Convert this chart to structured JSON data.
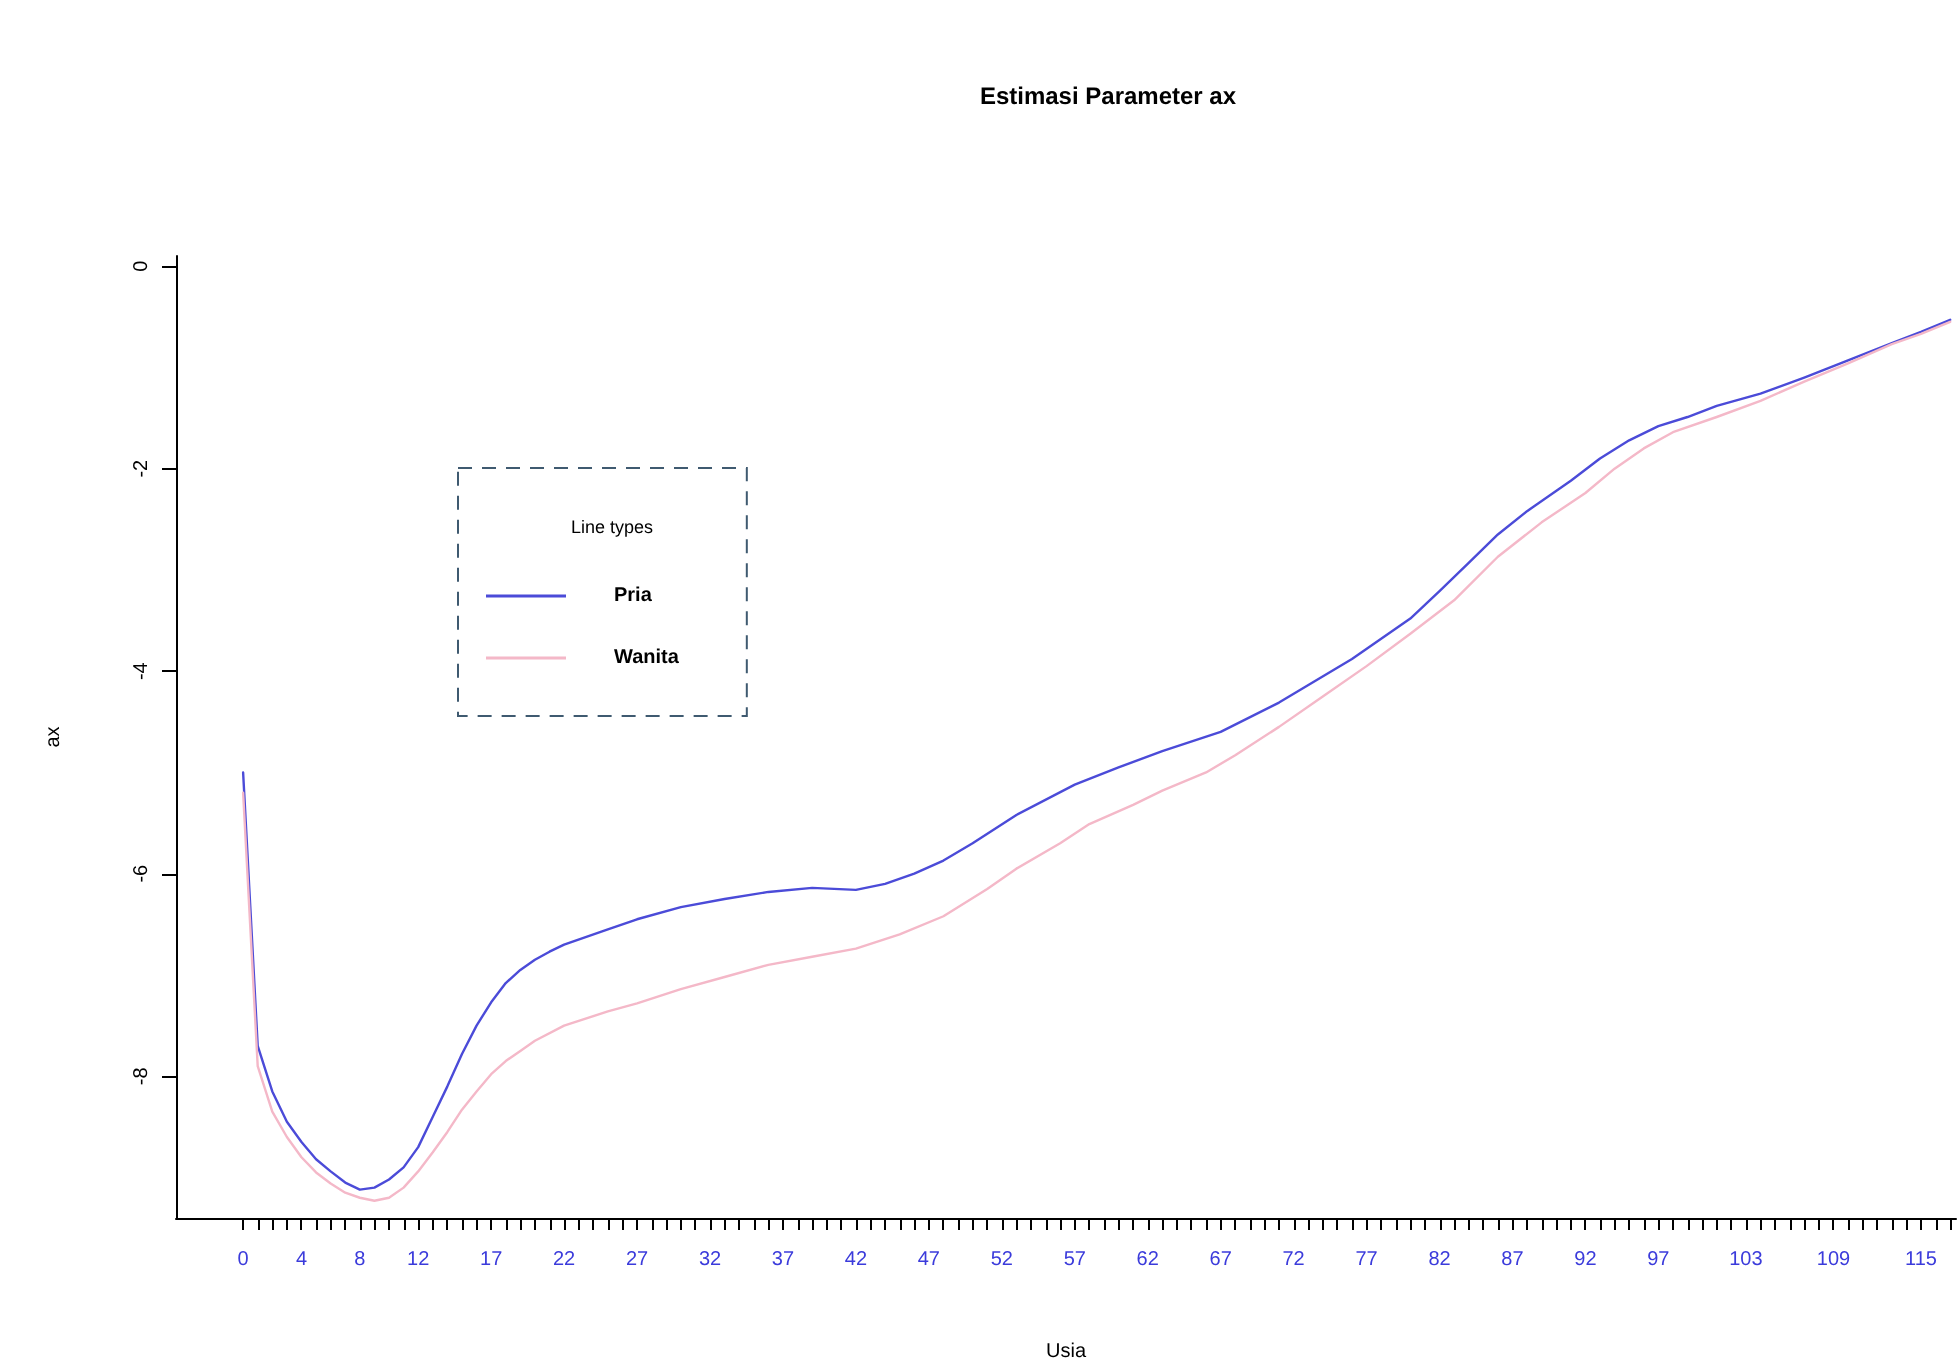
{
  "chart_data": {
    "type": "line",
    "title": "Estimasi Parameter ax",
    "xlabel": "Usia",
    "ylabel": "ax",
    "legend_title": "Line types",
    "legend": "top left",
    "grid": false,
    "marker": "none",
    "line_style": "solid",
    "xlim": [
      -4.6,
      117.4
    ],
    "xticks": [
      0,
      {
        "value": 1,
        "label": null
      },
      {
        "value": 2,
        "label": null
      },
      {
        "value": 3,
        "label": null
      },
      4,
      {
        "value": 5,
        "label": null
      },
      {
        "value": 6,
        "label": null
      },
      {
        "value": 7,
        "label": null
      },
      8,
      {
        "value": 9,
        "label": null
      },
      {
        "value": 10,
        "label": null
      },
      {
        "value": 11,
        "label": null
      },
      12,
      {
        "value": 13,
        "label": null
      },
      {
        "value": 14,
        "label": null
      },
      {
        "value": 15,
        "label": null
      },
      {
        "value": 16,
        "label": null
      },
      17,
      {
        "value": 18,
        "label": null
      },
      {
        "value": 19,
        "label": null
      },
      {
        "value": 20,
        "label": null
      },
      {
        "value": 21,
        "label": null
      },
      22,
      {
        "value": 23,
        "label": null
      },
      {
        "value": 24,
        "label": null
      },
      {
        "value": 25,
        "label": null
      },
      {
        "value": 26,
        "label": null
      },
      27,
      {
        "value": 28,
        "label": null
      },
      {
        "value": 29,
        "label": null
      },
      {
        "value": 30,
        "label": null
      },
      {
        "value": 31,
        "label": null
      },
      32,
      {
        "value": 33,
        "label": null
      },
      {
        "value": 34,
        "label": null
      },
      {
        "value": 35,
        "label": null
      },
      {
        "value": 36,
        "label": null
      },
      37,
      {
        "value": 38,
        "label": null
      },
      {
        "value": 39,
        "label": null
      },
      {
        "value": 40,
        "label": null
      },
      {
        "value": 41,
        "label": null
      },
      42,
      {
        "value": 43,
        "label": null
      },
      {
        "value": 44,
        "label": null
      },
      {
        "value": 45,
        "label": null
      },
      {
        "value": 46,
        "label": null
      },
      47,
      {
        "value": 48,
        "label": null
      },
      {
        "value": 49,
        "label": null
      },
      {
        "value": 50,
        "label": null
      },
      {
        "value": 51,
        "label": null
      },
      52,
      {
        "value": 53,
        "label": null
      },
      {
        "value": 54,
        "label": null
      },
      {
        "value": 55,
        "label": null
      },
      {
        "value": 56,
        "label": null
      },
      57,
      {
        "value": 58,
        "label": null
      },
      {
        "value": 59,
        "label": null
      },
      {
        "value": 60,
        "label": null
      },
      {
        "value": 61,
        "label": null
      },
      62,
      {
        "value": 63,
        "label": null
      },
      {
        "value": 64,
        "label": null
      },
      {
        "value": 65,
        "label": null
      },
      {
        "value": 66,
        "label": null
      },
      67,
      {
        "value": 68,
        "label": null
      },
      {
        "value": 69,
        "label": null
      },
      {
        "value": 70,
        "label": null
      },
      {
        "value": 71,
        "label": null
      },
      72,
      {
        "value": 73,
        "label": null
      },
      {
        "value": 74,
        "label": null
      },
      {
        "value": 75,
        "label": null
      },
      {
        "value": 76,
        "label": null
      },
      77,
      {
        "value": 78,
        "label": null
      },
      {
        "value": 79,
        "label": null
      },
      {
        "value": 80,
        "label": null
      },
      {
        "value": 81,
        "label": null
      },
      82,
      {
        "value": 83,
        "label": null
      },
      {
        "value": 84,
        "label": null
      },
      {
        "value": 85,
        "label": null
      },
      {
        "value": 86,
        "label": null
      },
      87,
      {
        "value": 88,
        "label": null
      },
      {
        "value": 89,
        "label": null
      },
      {
        "value": 90,
        "label": null
      },
      {
        "value": 91,
        "label": null
      },
      92,
      {
        "value": 93,
        "label": null
      },
      {
        "value": 94,
        "label": null
      },
      {
        "value": 95,
        "label": null
      },
      {
        "value": 96,
        "label": null
      },
      97,
      {
        "value": 98,
        "label": null
      },
      {
        "value": 99,
        "label": null
      },
      {
        "value": 100,
        "label": null
      },
      {
        "value": 101,
        "label": null
      },
      {
        "value": 102,
        "label": null
      },
      103,
      {
        "value": 104,
        "label": null
      },
      {
        "value": 105,
        "label": null
      },
      {
        "value": 106,
        "label": null
      },
      {
        "value": 107,
        "label": null
      },
      {
        "value": 108,
        "label": null
      },
      109,
      {
        "value": 110,
        "label": null
      },
      {
        "value": 111,
        "label": null
      },
      {
        "value": 112,
        "label": null
      },
      {
        "value": 113,
        "label": null
      },
      {
        "value": 114,
        "label": null
      },
      115,
      {
        "value": 116,
        "label": null
      },
      {
        "value": 117,
        "label": null
      }
    ],
    "ylim": [
      -9.4,
      0.1
    ],
    "yticks": [
      0,
      -2,
      -4,
      -6,
      -8
    ],
    "series": [
      {
        "name": "Pria",
        "color": "#4b4bd8",
        "x": [
          0,
          1,
          2,
          3,
          4,
          5,
          6,
          7,
          8,
          9,
          10,
          11,
          12,
          13,
          14,
          15,
          16,
          17,
          18,
          19,
          20,
          21,
          22,
          25,
          27,
          30,
          33,
          36,
          39,
          42,
          44,
          46,
          48,
          50,
          53,
          57,
          60,
          63,
          67,
          71,
          76,
          80,
          82,
          84,
          86,
          88,
          91,
          93,
          95,
          97,
          99,
          101,
          104,
          107,
          110,
          113,
          115,
          117
        ],
        "values": [
          -5.0,
          -7.7,
          -8.15,
          -8.45,
          -8.65,
          -8.82,
          -8.94,
          -9.05,
          -9.12,
          -9.1,
          -9.02,
          -8.9,
          -8.7,
          -8.4,
          -8.1,
          -7.78,
          -7.5,
          -7.27,
          -7.08,
          -6.95,
          -6.85,
          -6.77,
          -6.7,
          -6.55,
          -6.45,
          -6.33,
          -6.25,
          -6.18,
          -6.14,
          -6.16,
          -6.1,
          -6.0,
          -5.87,
          -5.7,
          -5.42,
          -5.12,
          -4.95,
          -4.79,
          -4.6,
          -4.31,
          -3.88,
          -3.48,
          -3.21,
          -2.93,
          -2.65,
          -2.42,
          -2.12,
          -1.9,
          -1.72,
          -1.58,
          -1.49,
          -1.38,
          -1.26,
          -1.1,
          -0.93,
          -0.76,
          -0.65,
          -0.53
        ]
      },
      {
        "name": "Wanita",
        "color": "#f4b8c8",
        "x": [
          0,
          1,
          2,
          3,
          4,
          5,
          6,
          7,
          8,
          9,
          10,
          11,
          12,
          13,
          14,
          15,
          16,
          17,
          18,
          19,
          20,
          22,
          25,
          27,
          30,
          33,
          36,
          39,
          42,
          45,
          48,
          51,
          53,
          56,
          58,
          61,
          63,
          66,
          68,
          71,
          74,
          77,
          80,
          83,
          86,
          89,
          92,
          94,
          96,
          98,
          101,
          104,
          107,
          110,
          113,
          115,
          117
        ],
        "values": [
          -5.2,
          -7.9,
          -8.35,
          -8.6,
          -8.8,
          -8.95,
          -9.06,
          -9.15,
          -9.2,
          -9.23,
          -9.2,
          -9.1,
          -8.94,
          -8.75,
          -8.55,
          -8.33,
          -8.15,
          -7.98,
          -7.85,
          -7.75,
          -7.65,
          -7.5,
          -7.36,
          -7.28,
          -7.14,
          -7.02,
          -6.9,
          -6.82,
          -6.74,
          -6.6,
          -6.42,
          -6.15,
          -5.95,
          -5.7,
          -5.51,
          -5.32,
          -5.18,
          -5.0,
          -4.83,
          -4.55,
          -4.25,
          -3.95,
          -3.63,
          -3.3,
          -2.87,
          -2.53,
          -2.24,
          -2.0,
          -1.8,
          -1.64,
          -1.49,
          -1.33,
          -1.14,
          -0.96,
          -0.77,
          -0.67,
          -0.55
        ]
      }
    ]
  }
}
